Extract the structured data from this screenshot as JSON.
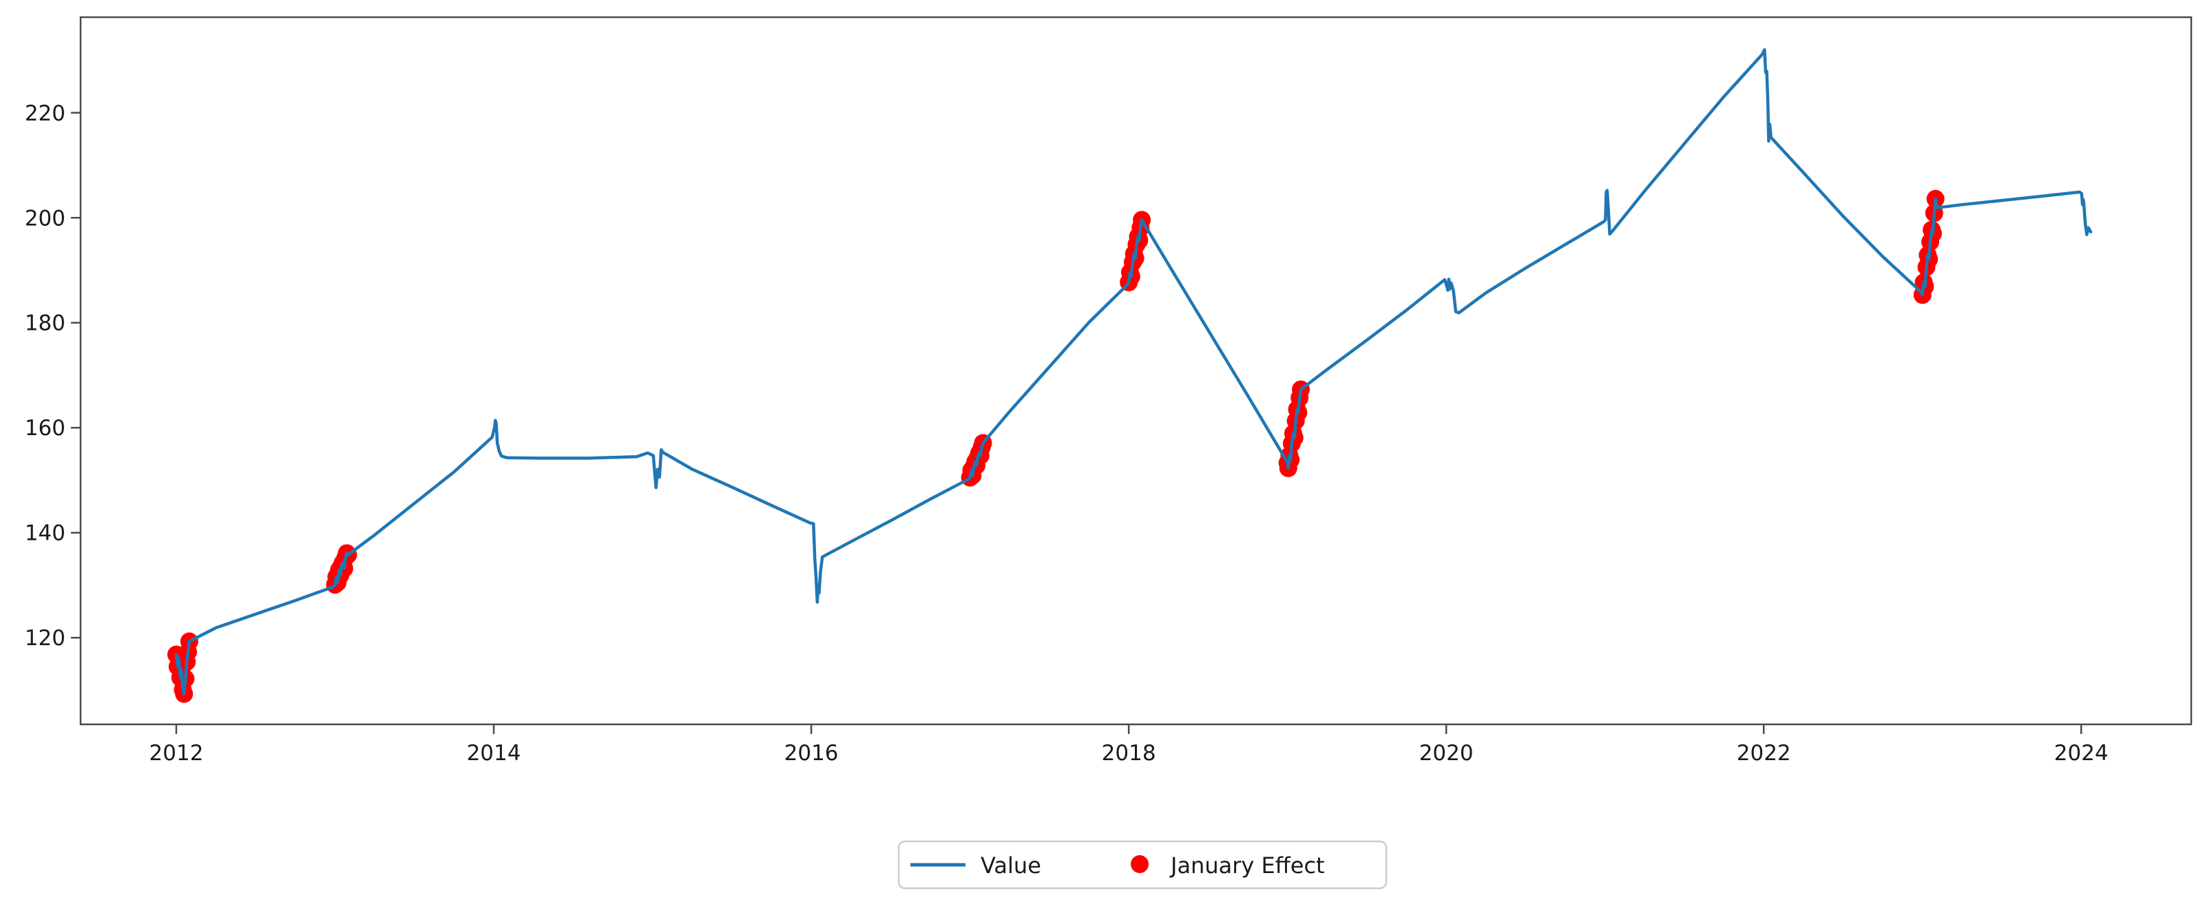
{
  "figure": {
    "background_color": "#ffffff",
    "axis_color": "#4a4a4a",
    "tick_label_color": "#1a1a1a"
  },
  "chart_data": {
    "type": "line",
    "title": "",
    "xlabel": "",
    "ylabel": "",
    "grid": false,
    "legend_position": "bottom-center-outside",
    "xlim": [
      2011.397,
      2024.693
    ],
    "ylim": [
      103.5,
      238.2
    ],
    "xticks": [
      2012,
      2014,
      2016,
      2018,
      2020,
      2022,
      2024
    ],
    "yticks": [
      120,
      140,
      160,
      180,
      200,
      220
    ],
    "series": [
      {
        "name": "Value",
        "type": "line",
        "color": "#1f77b4",
        "line_width": 4.5,
        "points": [
          [
            2012.0,
            116.8
          ],
          [
            2012.008,
            114.5
          ],
          [
            2012.016,
            116.2
          ],
          [
            2012.025,
            112.4
          ],
          [
            2012.033,
            113.8
          ],
          [
            2012.041,
            110.1
          ],
          [
            2012.049,
            109.3
          ],
          [
            2012.058,
            112.2
          ],
          [
            2012.066,
            115.4
          ],
          [
            2012.074,
            117.3
          ],
          [
            2012.082,
            119.3
          ],
          [
            2012.25,
            121.9
          ],
          [
            2012.5,
            124.5
          ],
          [
            2012.75,
            127.1
          ],
          [
            2012.99,
            129.7
          ],
          [
            2013.0,
            130.1
          ],
          [
            2013.008,
            131.6
          ],
          [
            2013.016,
            130.5
          ],
          [
            2013.025,
            132.9
          ],
          [
            2013.033,
            131.9
          ],
          [
            2013.041,
            133.7
          ],
          [
            2013.049,
            134.3
          ],
          [
            2013.058,
            133.2
          ],
          [
            2013.066,
            135.3
          ],
          [
            2013.074,
            136.1
          ],
          [
            2013.082,
            135.8
          ],
          [
            2013.25,
            139.6
          ],
          [
            2013.5,
            145.6
          ],
          [
            2013.75,
            151.6
          ],
          [
            2013.99,
            158.2
          ],
          [
            2014.005,
            160.1
          ],
          [
            2014.01,
            161.4
          ],
          [
            2014.016,
            160.7
          ],
          [
            2014.022,
            157.1
          ],
          [
            2014.027,
            156.5
          ],
          [
            2014.033,
            155.6
          ],
          [
            2014.049,
            154.6
          ],
          [
            2014.082,
            154.3
          ],
          [
            2014.3,
            154.2
          ],
          [
            2014.6,
            154.2
          ],
          [
            2014.9,
            154.5
          ],
          [
            2014.97,
            155.2
          ],
          [
            2015.005,
            154.7
          ],
          [
            2015.014,
            151.4
          ],
          [
            2015.022,
            148.6
          ],
          [
            2015.033,
            152.1
          ],
          [
            2015.044,
            150.6
          ],
          [
            2015.055,
            155.8
          ],
          [
            2015.066,
            155.3
          ],
          [
            2015.25,
            152.1
          ],
          [
            2015.5,
            148.7
          ],
          [
            2015.75,
            145.2
          ],
          [
            2015.99,
            141.9
          ],
          [
            2016.003,
            141.8
          ],
          [
            2016.014,
            141.7
          ],
          [
            2016.022,
            135.1
          ],
          [
            2016.03,
            131.6
          ],
          [
            2016.038,
            126.8
          ],
          [
            2016.044,
            130.1
          ],
          [
            2016.049,
            128.5
          ],
          [
            2016.058,
            132.6
          ],
          [
            2016.07,
            135.4
          ],
          [
            2016.25,
            138.3
          ],
          [
            2016.5,
            142.3
          ],
          [
            2016.75,
            146.4
          ],
          [
            2016.99,
            150.2
          ],
          [
            2017.0,
            150.5
          ],
          [
            2017.008,
            151.9
          ],
          [
            2017.016,
            150.9
          ],
          [
            2017.025,
            152.7
          ],
          [
            2017.033,
            153.5
          ],
          [
            2017.041,
            152.8
          ],
          [
            2017.049,
            154.4
          ],
          [
            2017.058,
            155.2
          ],
          [
            2017.066,
            154.7
          ],
          [
            2017.074,
            156.3
          ],
          [
            2017.082,
            157.1
          ],
          [
            2017.25,
            163.1
          ],
          [
            2017.5,
            171.6
          ],
          [
            2017.75,
            180.1
          ],
          [
            2017.99,
            187.2
          ],
          [
            2018.0,
            187.7
          ],
          [
            2018.008,
            189.6
          ],
          [
            2018.016,
            188.8
          ],
          [
            2018.025,
            191.5
          ],
          [
            2018.033,
            193.1
          ],
          [
            2018.041,
            192.3
          ],
          [
            2018.049,
            194.9
          ],
          [
            2018.058,
            196.4
          ],
          [
            2018.066,
            195.7
          ],
          [
            2018.074,
            198.1
          ],
          [
            2018.082,
            199.6
          ],
          [
            2018.25,
            191.1
          ],
          [
            2018.5,
            178.6
          ],
          [
            2018.75,
            166.1
          ],
          [
            2018.99,
            153.9
          ],
          [
            2019.0,
            153.3
          ],
          [
            2019.005,
            152.3
          ],
          [
            2019.012,
            154.7
          ],
          [
            2019.02,
            153.9
          ],
          [
            2019.027,
            157.0
          ],
          [
            2019.036,
            158.9
          ],
          [
            2019.044,
            158.1
          ],
          [
            2019.052,
            161.3
          ],
          [
            2019.06,
            163.5
          ],
          [
            2019.068,
            162.9
          ],
          [
            2019.076,
            165.7
          ],
          [
            2019.084,
            167.3
          ],
          [
            2019.25,
            171.1
          ],
          [
            2019.5,
            176.7
          ],
          [
            2019.75,
            182.4
          ],
          [
            2019.99,
            188.2
          ],
          [
            2020.003,
            187.0
          ],
          [
            2020.01,
            186.2
          ],
          [
            2020.016,
            188.3
          ],
          [
            2020.022,
            186.4
          ],
          [
            2020.03,
            187.6
          ],
          [
            2020.045,
            186.2
          ],
          [
            2020.06,
            182.1
          ],
          [
            2020.08,
            181.9
          ],
          [
            2020.25,
            185.7
          ],
          [
            2020.5,
            190.4
          ],
          [
            2020.75,
            194.9
          ],
          [
            2020.99,
            199.2
          ],
          [
            2021.003,
            199.6
          ],
          [
            2021.008,
            204.9
          ],
          [
            2021.014,
            205.2
          ],
          [
            2021.022,
            201.1
          ],
          [
            2021.03,
            196.9
          ],
          [
            2021.045,
            197.4
          ],
          [
            2021.25,
            205.1
          ],
          [
            2021.5,
            214.1
          ],
          [
            2021.75,
            223.1
          ],
          [
            2021.99,
            231.1
          ],
          [
            2022.005,
            232.0
          ],
          [
            2022.012,
            227.7
          ],
          [
            2022.019,
            227.9
          ],
          [
            2022.026,
            222.1
          ],
          [
            2022.031,
            214.6
          ],
          [
            2022.038,
            217.8
          ],
          [
            2022.046,
            215.3
          ],
          [
            2022.25,
            208.6
          ],
          [
            2022.5,
            200.3
          ],
          [
            2022.75,
            192.6
          ],
          [
            2022.99,
            185.9
          ],
          [
            2023.0,
            185.3
          ],
          [
            2023.008,
            187.7
          ],
          [
            2023.016,
            186.9
          ],
          [
            2023.025,
            190.6
          ],
          [
            2023.033,
            192.9
          ],
          [
            2023.041,
            192.1
          ],
          [
            2023.049,
            195.4
          ],
          [
            2023.058,
            197.7
          ],
          [
            2023.066,
            197.0
          ],
          [
            2023.074,
            200.9
          ],
          [
            2023.082,
            203.6
          ],
          [
            2023.09,
            201.9
          ],
          [
            2023.25,
            202.5
          ],
          [
            2023.5,
            203.3
          ],
          [
            2023.75,
            204.1
          ],
          [
            2023.99,
            204.9
          ],
          [
            2024.003,
            204.6
          ],
          [
            2024.008,
            202.5
          ],
          [
            2024.012,
            203.5
          ],
          [
            2024.016,
            202.9
          ],
          [
            2024.025,
            199.1
          ],
          [
            2024.035,
            196.8
          ],
          [
            2024.045,
            198.1
          ],
          [
            2024.06,
            197.3
          ]
        ]
      },
      {
        "name": "January Effect",
        "type": "scatter",
        "color": "#ff0000",
        "marker_radius": 13,
        "flagged_years": [
          2012,
          2013,
          2017,
          2018,
          2019,
          2023
        ],
        "points": [
          [
            2012.0,
            116.8
          ],
          [
            2012.008,
            114.5
          ],
          [
            2012.016,
            116.2
          ],
          [
            2012.025,
            112.4
          ],
          [
            2012.033,
            113.8
          ],
          [
            2012.041,
            110.1
          ],
          [
            2012.049,
            109.3
          ],
          [
            2012.058,
            112.2
          ],
          [
            2012.066,
            115.4
          ],
          [
            2012.074,
            117.3
          ],
          [
            2012.082,
            119.3
          ],
          [
            2013.0,
            130.1
          ],
          [
            2013.008,
            131.6
          ],
          [
            2013.016,
            130.5
          ],
          [
            2013.025,
            132.9
          ],
          [
            2013.033,
            131.9
          ],
          [
            2013.041,
            133.7
          ],
          [
            2013.049,
            134.3
          ],
          [
            2013.058,
            133.2
          ],
          [
            2013.066,
            135.3
          ],
          [
            2013.074,
            136.1
          ],
          [
            2013.082,
            135.8
          ],
          [
            2017.0,
            150.5
          ],
          [
            2017.008,
            151.9
          ],
          [
            2017.016,
            150.9
          ],
          [
            2017.025,
            152.7
          ],
          [
            2017.033,
            153.5
          ],
          [
            2017.041,
            152.8
          ],
          [
            2017.049,
            154.4
          ],
          [
            2017.058,
            155.2
          ],
          [
            2017.066,
            154.7
          ],
          [
            2017.074,
            156.3
          ],
          [
            2017.082,
            157.1
          ],
          [
            2018.0,
            187.7
          ],
          [
            2018.008,
            189.6
          ],
          [
            2018.016,
            188.8
          ],
          [
            2018.025,
            191.5
          ],
          [
            2018.033,
            193.1
          ],
          [
            2018.041,
            192.3
          ],
          [
            2018.049,
            194.9
          ],
          [
            2018.058,
            196.4
          ],
          [
            2018.066,
            195.7
          ],
          [
            2018.074,
            198.1
          ],
          [
            2018.082,
            199.6
          ],
          [
            2019.0,
            153.3
          ],
          [
            2019.005,
            152.3
          ],
          [
            2019.012,
            154.7
          ],
          [
            2019.02,
            153.9
          ],
          [
            2019.027,
            157.0
          ],
          [
            2019.036,
            158.9
          ],
          [
            2019.044,
            158.1
          ],
          [
            2019.052,
            161.3
          ],
          [
            2019.06,
            163.5
          ],
          [
            2019.068,
            162.9
          ],
          [
            2019.076,
            165.7
          ],
          [
            2019.084,
            167.3
          ],
          [
            2023.0,
            185.3
          ],
          [
            2023.008,
            187.7
          ],
          [
            2023.016,
            186.9
          ],
          [
            2023.025,
            190.6
          ],
          [
            2023.033,
            192.9
          ],
          [
            2023.041,
            192.1
          ],
          [
            2023.049,
            195.4
          ],
          [
            2023.058,
            197.7
          ],
          [
            2023.066,
            197.0
          ],
          [
            2023.074,
            200.9
          ],
          [
            2023.082,
            203.6
          ]
        ]
      }
    ]
  },
  "legend": {
    "items": [
      {
        "label": "Value",
        "swatch": "line",
        "color": "#1f77b4"
      },
      {
        "label": "January Effect",
        "swatch": "dot",
        "color": "#ff0000"
      }
    ]
  }
}
